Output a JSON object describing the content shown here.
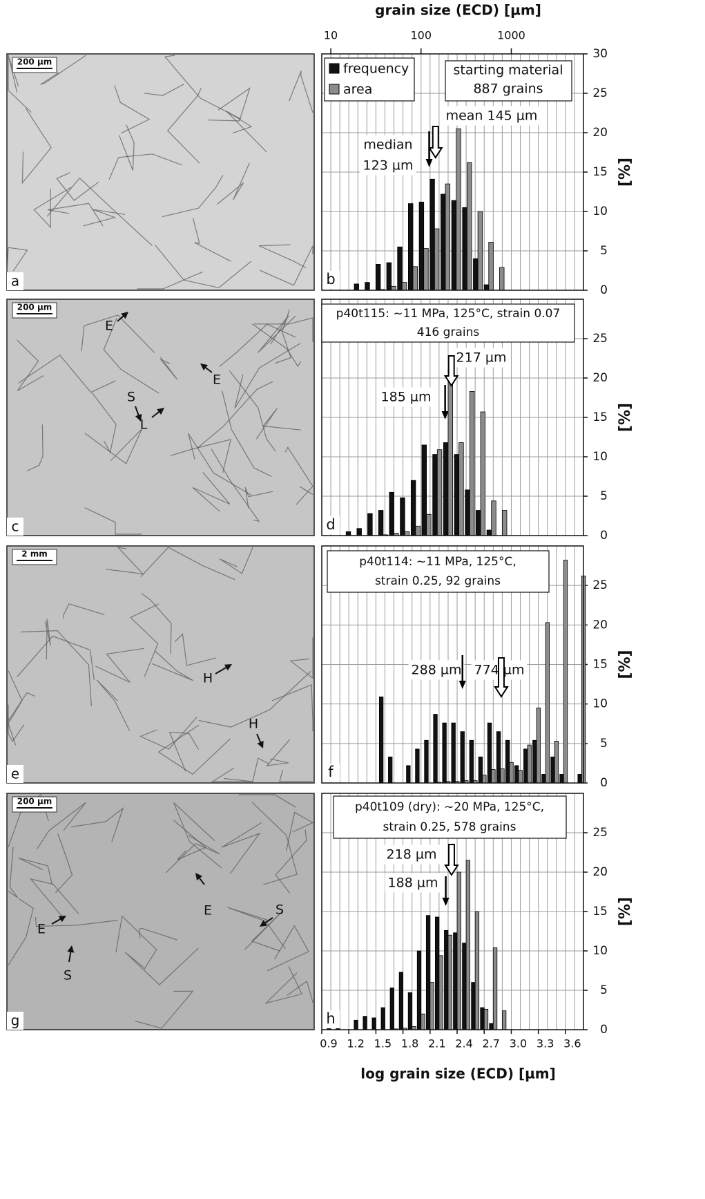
{
  "chart_data": [
    {
      "type": "bar",
      "panel": "b",
      "ylabel": "[%]",
      "xlim": [
        0.9,
        3.8
      ],
      "ylim": [
        0,
        30
      ],
      "yticks": [
        0,
        5,
        10,
        15,
        20,
        25,
        30
      ],
      "xgrid": [
        0.9,
        1.0,
        1.1,
        1.2,
        1.3,
        1.4,
        1.5,
        1.6,
        1.7,
        1.8,
        1.9,
        2.0,
        2.1,
        2.2,
        2.3,
        2.4,
        2.5,
        2.6,
        2.7,
        2.8,
        2.9,
        3.0,
        3.1,
        3.2,
        3.3,
        3.4,
        3.5,
        3.6,
        3.7
      ],
      "x2label": "grain size (ECD) [µm]",
      "x2ticks": [
        {
          "value": 1,
          "label": "10"
        },
        {
          "value": 2,
          "label": "100"
        },
        {
          "value": 3,
          "label": "1000"
        }
      ],
      "legend": "top-left",
      "box": [
        "starting material",
        "887 grains"
      ],
      "x": [
        1.31,
        1.43,
        1.55,
        1.67,
        1.79,
        1.91,
        2.03,
        2.15,
        2.27,
        2.39,
        2.51,
        2.63,
        2.75,
        2.87
      ],
      "series": [
        {
          "name": "frequency",
          "color": "#111111",
          "values": [
            0.8,
            1.0,
            3.3,
            3.5,
            5.5,
            11.0,
            11.2,
            14.1,
            12.2,
            11.4,
            10.5,
            4.0,
            0.7,
            0
          ]
        },
        {
          "name": "area",
          "color": "#8c8c8c",
          "values": [
            0,
            0,
            0.1,
            0.5,
            1.0,
            3.0,
            5.3,
            7.8,
            13.5,
            20.5,
            16.2,
            10.0,
            6.1,
            2.9
          ]
        }
      ],
      "annotations": [
        {
          "lines": [
            "median",
            "123 µm"
          ],
          "x": 2.09,
          "arrow": "solid"
        },
        {
          "lines": [
            "mean 145 µm"
          ],
          "x": 2.161,
          "arrow": "hollow"
        }
      ]
    },
    {
      "type": "bar",
      "panel": "d",
      "ylabel": "[%]",
      "xlim": [
        0.9,
        3.8
      ],
      "ylim": [
        0,
        30
      ],
      "yticks": [
        0,
        5,
        10,
        15,
        20,
        25
      ],
      "xgrid": [
        0.9,
        1.0,
        1.1,
        1.2,
        1.3,
        1.4,
        1.5,
        1.6,
        1.7,
        1.8,
        1.9,
        2.0,
        2.1,
        2.2,
        2.3,
        2.4,
        2.5,
        2.6,
        2.7,
        2.8,
        2.9,
        3.0,
        3.1,
        3.2,
        3.3,
        3.4,
        3.5,
        3.6,
        3.7
      ],
      "box": [
        "p40t115: ~11 MPa, 125°C, strain 0.07",
        "416 grains"
      ],
      "x": [
        1.22,
        1.34,
        1.46,
        1.58,
        1.7,
        1.82,
        1.94,
        2.06,
        2.18,
        2.3,
        2.42,
        2.54,
        2.66,
        2.78,
        2.9
      ],
      "series": [
        {
          "color": "#111111",
          "values": [
            0.5,
            0.9,
            2.8,
            3.2,
            5.5,
            4.8,
            7.0,
            11.5,
            10.3,
            11.8,
            10.3,
            5.8,
            3.2,
            0.7,
            0
          ]
        },
        {
          "color": "#8c8c8c",
          "values": [
            0,
            0,
            0,
            0.1,
            0.3,
            0.5,
            1.2,
            2.7,
            10.9,
            21.3,
            11.8,
            18.3,
            15.7,
            4.4,
            3.2
          ]
        }
      ],
      "annotations": [
        {
          "lines": [
            "185 µm"
          ],
          "x": 2.267,
          "arrow": "solid"
        },
        {
          "lines": [
            "217 µm"
          ],
          "x": 2.336,
          "arrow": "hollow"
        }
      ]
    },
    {
      "type": "bar",
      "panel": "f",
      "ylabel": "[%]",
      "xlim": [
        0.9,
        3.8
      ],
      "ylim": [
        0,
        30
      ],
      "yticks": [
        0,
        5,
        10,
        15,
        20,
        25
      ],
      "xgrid": [
        0.9,
        1.0,
        1.1,
        1.2,
        1.3,
        1.4,
        1.5,
        1.6,
        1.7,
        1.8,
        1.9,
        2.0,
        2.1,
        2.2,
        2.3,
        2.4,
        2.5,
        2.6,
        2.7,
        2.8,
        2.9,
        3.0,
        3.1,
        3.2,
        3.3,
        3.4,
        3.5,
        3.6,
        3.7
      ],
      "box": [
        "p40t114: ~11 MPa, 125°C,",
        "strain 0.25, 92 grains"
      ],
      "x": [
        1.58,
        1.68,
        1.78,
        1.88,
        1.98,
        2.08,
        2.18,
        2.28,
        2.38,
        2.48,
        2.58,
        2.68,
        2.78,
        2.88,
        2.98,
        3.08,
        3.18,
        3.28,
        3.38,
        3.48,
        3.58,
        3.68,
        3.78
      ],
      "series": [
        {
          "color": "#111111",
          "values": [
            10.9,
            3.3,
            0,
            2.2,
            4.3,
            5.4,
            8.7,
            7.6,
            7.6,
            6.5,
            5.4,
            3.3,
            7.6,
            6.5,
            5.4,
            2.2,
            4.3,
            5.4,
            1.1,
            3.3,
            1.1,
            0,
            1.1
          ]
        },
        {
          "color": "#8c8c8c",
          "values": [
            0,
            0,
            0,
            0,
            0,
            0,
            0.1,
            0.2,
            0.2,
            0.3,
            0.3,
            1.0,
            1.7,
            1.8,
            2.6,
            1.6,
            4.8,
            9.5,
            20.3,
            5.3,
            28.2,
            0,
            26.2
          ]
        }
      ],
      "annotations": [
        {
          "lines": [
            "288 µm"
          ],
          "x": 2.459,
          "arrow": "solid"
        },
        {
          "lines": [
            "774 µm"
          ],
          "x": 2.889,
          "arrow": "hollow"
        }
      ]
    },
    {
      "type": "bar",
      "panel": "h",
      "ylabel": "[%]",
      "xlim": [
        0.9,
        3.8
      ],
      "ylim": [
        0,
        30
      ],
      "yticks": [
        0,
        5,
        10,
        15,
        20,
        25
      ],
      "xgrid": [
        0.9,
        1.0,
        1.1,
        1.2,
        1.3,
        1.4,
        1.5,
        1.6,
        1.7,
        1.8,
        1.9,
        2.0,
        2.1,
        2.2,
        2.3,
        2.4,
        2.5,
        2.6,
        2.7,
        2.8,
        2.9,
        3.0,
        3.1,
        3.2,
        3.3,
        3.4,
        3.5,
        3.6,
        3.7
      ],
      "box": [
        "p40t109 (dry): ~20 MPa, 125°C,",
        "strain 0.25, 578 grains"
      ],
      "xlabel": "log grain size (ECD) [µm]",
      "xticks": [
        0.9,
        1.2,
        1.5,
        1.8,
        2.1,
        2.4,
        2.7,
        {
          "value": 3,
          "label": "3.0"
        },
        3.3,
        3.6
      ],
      "x": [
        1.0,
        1.1,
        1.2,
        1.3,
        1.4,
        1.5,
        1.6,
        1.7,
        1.8,
        1.9,
        2.0,
        2.1,
        2.2,
        2.3,
        2.4,
        2.5,
        2.6,
        2.7,
        2.8,
        2.9
      ],
      "series": [
        {
          "color": "#111111",
          "values": [
            0.5,
            0.2,
            0,
            1.2,
            1.7,
            1.5,
            2.8,
            5.3,
            7.3,
            4.7,
            10.0,
            14.5,
            14.3,
            12.6,
            12.3,
            11.0,
            6.0,
            2.8,
            0.8,
            0
          ]
        },
        {
          "color": "#8c8c8c",
          "values": [
            0,
            0,
            0,
            0,
            0,
            0,
            0,
            0.1,
            0.2,
            0.4,
            2.0,
            6.0,
            9.4,
            12.0,
            20.0,
            21.5,
            15.0,
            2.6,
            10.4,
            2.4
          ]
        }
      ],
      "annotations": [
        {
          "lines": [
            "218 µm"
          ],
          "x": 2.338,
          "arrow": "hollow"
        },
        {
          "lines": [
            "188 µm"
          ],
          "x": 2.274,
          "arrow": "solid"
        }
      ]
    }
  ],
  "micrographs": [
    {
      "panel": "a",
      "scale_bar": "200 µm",
      "labels": []
    },
    {
      "panel": "c",
      "scale_bar": "200 µm",
      "labels": [
        "E",
        "E",
        "S",
        "L"
      ]
    },
    {
      "panel": "e",
      "scale_bar": "2 mm",
      "labels": [
        "H",
        "H"
      ]
    },
    {
      "panel": "g",
      "scale_bar": "200 µm",
      "labels": [
        "E",
        "E",
        "S",
        "S"
      ]
    }
  ]
}
